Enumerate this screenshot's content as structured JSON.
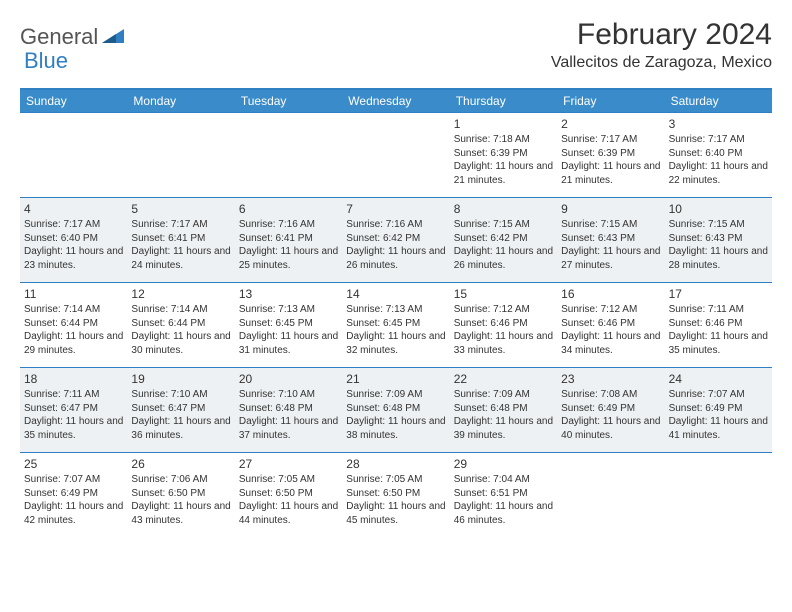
{
  "brand": {
    "part1": "General",
    "part2": "Blue"
  },
  "title": "February 2024",
  "location": "Vallecitos de Zaragoza, Mexico",
  "colors": {
    "header_bg": "#3a8bc9",
    "border": "#2f7fc2",
    "alt_row_bg": "#eef1f3",
    "text": "#333333",
    "white": "#ffffff"
  },
  "fonts": {
    "title_size": 30,
    "location_size": 16,
    "dow_size": 12,
    "day_size": 12,
    "cell_size": 10
  },
  "days_of_week": [
    "Sunday",
    "Monday",
    "Tuesday",
    "Wednesday",
    "Thursday",
    "Friday",
    "Saturday"
  ],
  "weeks": [
    {
      "alt": false,
      "cells": [
        {
          "day": "",
          "sunrise": "",
          "sunset": "",
          "daylight": ""
        },
        {
          "day": "",
          "sunrise": "",
          "sunset": "",
          "daylight": ""
        },
        {
          "day": "",
          "sunrise": "",
          "sunset": "",
          "daylight": ""
        },
        {
          "day": "",
          "sunrise": "",
          "sunset": "",
          "daylight": ""
        },
        {
          "day": "1",
          "sunrise": "Sunrise: 7:18 AM",
          "sunset": "Sunset: 6:39 PM",
          "daylight": "Daylight: 11 hours and 21 minutes."
        },
        {
          "day": "2",
          "sunrise": "Sunrise: 7:17 AM",
          "sunset": "Sunset: 6:39 PM",
          "daylight": "Daylight: 11 hours and 21 minutes."
        },
        {
          "day": "3",
          "sunrise": "Sunrise: 7:17 AM",
          "sunset": "Sunset: 6:40 PM",
          "daylight": "Daylight: 11 hours and 22 minutes."
        }
      ]
    },
    {
      "alt": true,
      "cells": [
        {
          "day": "4",
          "sunrise": "Sunrise: 7:17 AM",
          "sunset": "Sunset: 6:40 PM",
          "daylight": "Daylight: 11 hours and 23 minutes."
        },
        {
          "day": "5",
          "sunrise": "Sunrise: 7:17 AM",
          "sunset": "Sunset: 6:41 PM",
          "daylight": "Daylight: 11 hours and 24 minutes."
        },
        {
          "day": "6",
          "sunrise": "Sunrise: 7:16 AM",
          "sunset": "Sunset: 6:41 PM",
          "daylight": "Daylight: 11 hours and 25 minutes."
        },
        {
          "day": "7",
          "sunrise": "Sunrise: 7:16 AM",
          "sunset": "Sunset: 6:42 PM",
          "daylight": "Daylight: 11 hours and 26 minutes."
        },
        {
          "day": "8",
          "sunrise": "Sunrise: 7:15 AM",
          "sunset": "Sunset: 6:42 PM",
          "daylight": "Daylight: 11 hours and 26 minutes."
        },
        {
          "day": "9",
          "sunrise": "Sunrise: 7:15 AM",
          "sunset": "Sunset: 6:43 PM",
          "daylight": "Daylight: 11 hours and 27 minutes."
        },
        {
          "day": "10",
          "sunrise": "Sunrise: 7:15 AM",
          "sunset": "Sunset: 6:43 PM",
          "daylight": "Daylight: 11 hours and 28 minutes."
        }
      ]
    },
    {
      "alt": false,
      "cells": [
        {
          "day": "11",
          "sunrise": "Sunrise: 7:14 AM",
          "sunset": "Sunset: 6:44 PM",
          "daylight": "Daylight: 11 hours and 29 minutes."
        },
        {
          "day": "12",
          "sunrise": "Sunrise: 7:14 AM",
          "sunset": "Sunset: 6:44 PM",
          "daylight": "Daylight: 11 hours and 30 minutes."
        },
        {
          "day": "13",
          "sunrise": "Sunrise: 7:13 AM",
          "sunset": "Sunset: 6:45 PM",
          "daylight": "Daylight: 11 hours and 31 minutes."
        },
        {
          "day": "14",
          "sunrise": "Sunrise: 7:13 AM",
          "sunset": "Sunset: 6:45 PM",
          "daylight": "Daylight: 11 hours and 32 minutes."
        },
        {
          "day": "15",
          "sunrise": "Sunrise: 7:12 AM",
          "sunset": "Sunset: 6:46 PM",
          "daylight": "Daylight: 11 hours and 33 minutes."
        },
        {
          "day": "16",
          "sunrise": "Sunrise: 7:12 AM",
          "sunset": "Sunset: 6:46 PM",
          "daylight": "Daylight: 11 hours and 34 minutes."
        },
        {
          "day": "17",
          "sunrise": "Sunrise: 7:11 AM",
          "sunset": "Sunset: 6:46 PM",
          "daylight": "Daylight: 11 hours and 35 minutes."
        }
      ]
    },
    {
      "alt": true,
      "cells": [
        {
          "day": "18",
          "sunrise": "Sunrise: 7:11 AM",
          "sunset": "Sunset: 6:47 PM",
          "daylight": "Daylight: 11 hours and 35 minutes."
        },
        {
          "day": "19",
          "sunrise": "Sunrise: 7:10 AM",
          "sunset": "Sunset: 6:47 PM",
          "daylight": "Daylight: 11 hours and 36 minutes."
        },
        {
          "day": "20",
          "sunrise": "Sunrise: 7:10 AM",
          "sunset": "Sunset: 6:48 PM",
          "daylight": "Daylight: 11 hours and 37 minutes."
        },
        {
          "day": "21",
          "sunrise": "Sunrise: 7:09 AM",
          "sunset": "Sunset: 6:48 PM",
          "daylight": "Daylight: 11 hours and 38 minutes."
        },
        {
          "day": "22",
          "sunrise": "Sunrise: 7:09 AM",
          "sunset": "Sunset: 6:48 PM",
          "daylight": "Daylight: 11 hours and 39 minutes."
        },
        {
          "day": "23",
          "sunrise": "Sunrise: 7:08 AM",
          "sunset": "Sunset: 6:49 PM",
          "daylight": "Daylight: 11 hours and 40 minutes."
        },
        {
          "day": "24",
          "sunrise": "Sunrise: 7:07 AM",
          "sunset": "Sunset: 6:49 PM",
          "daylight": "Daylight: 11 hours and 41 minutes."
        }
      ]
    },
    {
      "alt": false,
      "cells": [
        {
          "day": "25",
          "sunrise": "Sunrise: 7:07 AM",
          "sunset": "Sunset: 6:49 PM",
          "daylight": "Daylight: 11 hours and 42 minutes."
        },
        {
          "day": "26",
          "sunrise": "Sunrise: 7:06 AM",
          "sunset": "Sunset: 6:50 PM",
          "daylight": "Daylight: 11 hours and 43 minutes."
        },
        {
          "day": "27",
          "sunrise": "Sunrise: 7:05 AM",
          "sunset": "Sunset: 6:50 PM",
          "daylight": "Daylight: 11 hours and 44 minutes."
        },
        {
          "day": "28",
          "sunrise": "Sunrise: 7:05 AM",
          "sunset": "Sunset: 6:50 PM",
          "daylight": "Daylight: 11 hours and 45 minutes."
        },
        {
          "day": "29",
          "sunrise": "Sunrise: 7:04 AM",
          "sunset": "Sunset: 6:51 PM",
          "daylight": "Daylight: 11 hours and 46 minutes."
        },
        {
          "day": "",
          "sunrise": "",
          "sunset": "",
          "daylight": ""
        },
        {
          "day": "",
          "sunrise": "",
          "sunset": "",
          "daylight": ""
        }
      ]
    }
  ]
}
